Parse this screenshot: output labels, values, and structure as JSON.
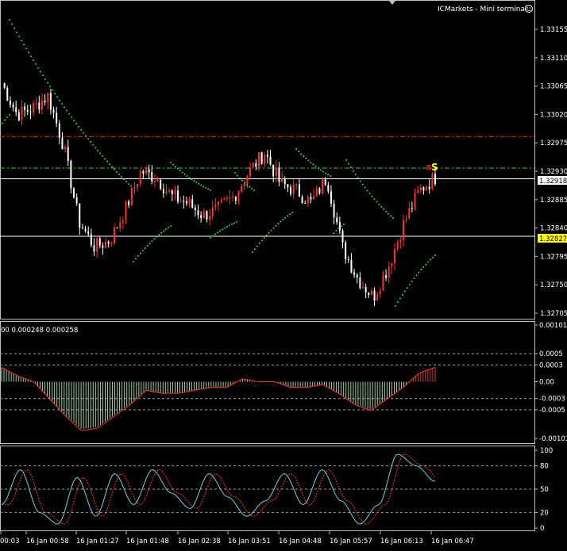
{
  "window": {
    "title": "ICMarkets - Mini terminal",
    "title_icon": "smiley-icon",
    "scroll_marker_icon": "triangle-down-icon"
  },
  "colors": {
    "background": "#000000",
    "axis": "#c0c0c0",
    "grid": "#a0a0a0",
    "bull_candle": "#ff3030",
    "bear_candle": "#ffffff",
    "psar": "#33ff33",
    "resistance_line": "#ff2020",
    "dashdot_line": "#33cc33",
    "current_price_line": "#ffffff",
    "current_price_tag": "#ffffff",
    "support_line": "#ffffff",
    "support_tag": "#ffff00",
    "signal_label": "#ffff00",
    "signal_label_red": "#ff2020",
    "histogram_up": "#c0ffc0",
    "histogram_positive": "#ff5050",
    "histogram_signal": "#ff3030",
    "stochastic_main": "#5dd5e0",
    "stochastic_signal": "#ff3030"
  },
  "main_chart": {
    "y_ticks": [
      "1.33155",
      "1.33110",
      "1.33065",
      "1.33020",
      "1.32975",
      "1.32930",
      "1.32885",
      "1.32840",
      "1.32795",
      "1.32750",
      "1.32705"
    ],
    "current_price": "1.32918",
    "support_price": "1.32827",
    "signal_label": "S",
    "signal_label_prefix": "s"
  },
  "oscillator": {
    "header": "00 0.000248 0.000258",
    "y_ticks": [
      "0.00101",
      "0.0005",
      "0.0003",
      "0.00",
      "-0.0003",
      "-0.0005",
      "-0.00101"
    ]
  },
  "stochastic": {
    "y_ticks": [
      "100",
      "80",
      "50",
      "20",
      "0"
    ]
  },
  "time_axis": {
    "labels": [
      "00:03",
      "16 Jan 00:58",
      "16 Jan 01:27",
      "16 Jan 01:48",
      "16 Jan 02:38",
      "16 Jan 03:51",
      "16 Jan 04:48",
      "16 Jan 05:57",
      "16 Jan 06:13",
      "16 Jan 06:47"
    ]
  },
  "chart_data": {
    "type": "candlestick",
    "symbol_axis_range": [
      1.32705,
      1.33155
    ],
    "x": [
      "00:03",
      "16 Jan 00:58",
      "16 Jan 01:27",
      "16 Jan 01:48",
      "16 Jan 02:38",
      "16 Jan 03:51",
      "16 Jan 04:48",
      "16 Jan 05:57",
      "16 Jan 06:13",
      "16 Jan 06:47"
    ],
    "close_path": [
      1.3307,
      1.3302,
      1.3303,
      1.3305,
      1.3297,
      1.3285,
      1.3281,
      1.3282,
      1.3287,
      1.3293,
      1.3292,
      1.3289,
      1.3288,
      1.3286,
      1.3287,
      1.3289,
      1.3293,
      1.3296,
      1.3291,
      1.329,
      1.3288,
      1.3292,
      1.3281,
      1.3276,
      1.3273,
      1.3278,
      1.3285,
      1.329,
      1.3292
    ],
    "resistance_level": 1.32985,
    "dashdot_level": 1.32935,
    "current_price": 1.32918,
    "support_level": 1.32827,
    "oscillator_range": [
      -0.00101,
      0.00101
    ],
    "oscillator_path": [
      0.00025,
      0.0001,
      0.0,
      -0.0003,
      -0.0006,
      -0.00085,
      -0.0008,
      -0.0006,
      -0.0004,
      -0.00015,
      -0.0002,
      -0.0002,
      -0.00015,
      -0.0001,
      -0.0001,
      5e-05,
      0.0,
      0.0,
      -0.0001,
      -0.0001,
      -5e-05,
      -0.0002,
      -0.0004,
      -0.0005,
      -0.0003,
      -0.0001,
      0.00015,
      0.00025
    ],
    "stochastic_range": [
      0,
      100
    ],
    "stochastic_path": [
      30,
      75,
      20,
      5,
      65,
      15,
      70,
      30,
      75,
      45,
      25,
      70,
      40,
      15,
      35,
      70,
      30,
      75,
      35,
      5,
      30,
      95,
      80,
      60
    ]
  }
}
